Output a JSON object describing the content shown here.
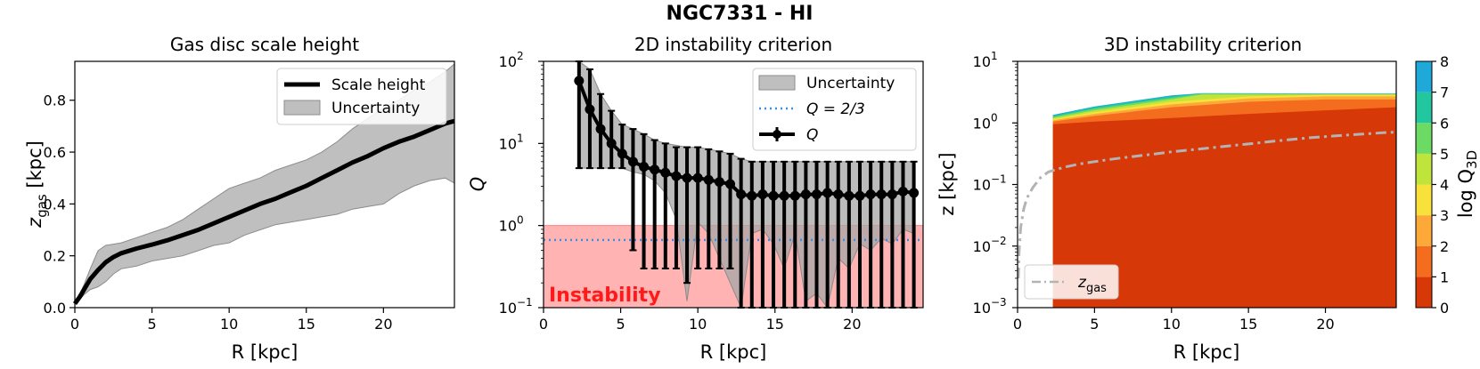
{
  "suptitle": "NGC7331 - HI",
  "chart_data": [
    {
      "type": "line",
      "title": "Gas disc scale height",
      "xlabel": "R [kpc]",
      "ylabel": "z_gas [kpc]",
      "ylabel_main": "z",
      "ylabel_sub": "gas",
      "ylabel_unit": " [kpc]",
      "xlim": [
        0,
        24.6
      ],
      "ylim": [
        0,
        0.95
      ],
      "xticks": [
        0,
        5,
        10,
        15,
        20
      ],
      "xtick_labels": [
        "0",
        "5",
        "10",
        "15",
        "20"
      ],
      "yticks": [
        0,
        0.2,
        0.4,
        0.6,
        0.8
      ],
      "ytick_labels": [
        "0.0",
        "0.2",
        "0.4",
        "0.6",
        "0.8"
      ],
      "legend": [
        "Scale height",
        "Uncertainty"
      ],
      "x": [
        0,
        0.3,
        0.6,
        1,
        1.5,
        2,
        2.5,
        3,
        4,
        5,
        6,
        7,
        8,
        9,
        10,
        11,
        12,
        13,
        14,
        15,
        16,
        17,
        18,
        19,
        20,
        21,
        22,
        23,
        24,
        24.6
      ],
      "y": [
        0.015,
        0.04,
        0.07,
        0.11,
        0.145,
        0.175,
        0.195,
        0.21,
        0.228,
        0.243,
        0.26,
        0.28,
        0.3,
        0.325,
        0.35,
        0.375,
        0.4,
        0.42,
        0.445,
        0.47,
        0.5,
        0.53,
        0.56,
        0.585,
        0.615,
        0.64,
        0.66,
        0.685,
        0.71,
        0.72
      ],
      "upper": [
        0.015,
        0.05,
        0.09,
        0.15,
        0.22,
        0.24,
        0.245,
        0.25,
        0.27,
        0.29,
        0.31,
        0.34,
        0.38,
        0.42,
        0.46,
        0.48,
        0.5,
        0.53,
        0.55,
        0.57,
        0.6,
        0.64,
        0.69,
        0.73,
        0.77,
        0.8,
        0.84,
        0.87,
        0.91,
        0.94
      ],
      "lower": [
        0.015,
        0.03,
        0.05,
        0.07,
        0.08,
        0.1,
        0.13,
        0.15,
        0.16,
        0.18,
        0.19,
        0.2,
        0.22,
        0.24,
        0.25,
        0.28,
        0.3,
        0.32,
        0.33,
        0.34,
        0.35,
        0.36,
        0.38,
        0.39,
        0.4,
        0.44,
        0.47,
        0.49,
        0.5,
        0.48
      ]
    },
    {
      "type": "line",
      "title": "2D instability criterion",
      "xlabel": "R [kpc]",
      "ylabel": "Q",
      "yscale": "log",
      "xlim": [
        0,
        24.6
      ],
      "ylim": [
        0.1,
        100
      ],
      "xticks": [
        0,
        5,
        10,
        15,
        20
      ],
      "xtick_labels": [
        "0",
        "5",
        "10",
        "15",
        "20"
      ],
      "yticks": [
        0.1,
        1,
        10,
        100
      ],
      "ytick_base": [
        "10",
        "10",
        "10",
        "10"
      ],
      "ytick_exp": [
        "−1",
        "0",
        "1",
        "2"
      ],
      "legend": [
        "Uncertainty",
        "Q = 2/3",
        "Q"
      ],
      "threshold_line": 0.6667,
      "instability_region_max": 1,
      "annotation": "Instability",
      "x": [
        2.3,
        3.0,
        3.7,
        4.4,
        5.1,
        5.8,
        6.5,
        7.2,
        7.9,
        8.6,
        9.3,
        10.0,
        10.7,
        11.4,
        12.1,
        12.8,
        13.5,
        14.2,
        14.9,
        15.6,
        16.3,
        17.0,
        17.7,
        18.4,
        19.1,
        19.8,
        20.5,
        21.2,
        21.9,
        22.6,
        23.3,
        24.0
      ],
      "Q": [
        58,
        26,
        15,
        10,
        7.5,
        6,
        5.2,
        4.8,
        4.4,
        4.0,
        3.8,
        3.8,
        3.6,
        3.4,
        3.2,
        2.4,
        2.3,
        2.4,
        2.3,
        2.3,
        2.3,
        2.4,
        2.4,
        2.5,
        2.4,
        2.3,
        2.3,
        2.4,
        2.4,
        2.4,
        2.6,
        2.5
      ],
      "Q_err_upper": [
        100,
        80,
        40,
        25,
        17,
        15,
        13,
        11,
        10,
        9,
        9,
        9,
        8.5,
        8,
        7.5,
        6.5,
        6,
        6,
        6,
        6,
        6,
        6,
        6,
        6,
        6,
        6,
        6,
        6,
        6,
        6,
        6,
        6
      ],
      "Q_err_lower": [
        5,
        5,
        5,
        5,
        5,
        0.5,
        0.3,
        0.3,
        0.3,
        0.3,
        0.2,
        0.3,
        0.3,
        0.3,
        0.3,
        0.1,
        0.1,
        0.1,
        0.1,
        0.1,
        0.1,
        0.1,
        0.1,
        0.1,
        0.1,
        0.1,
        0.1,
        0.1,
        0.1,
        0.1,
        0.1,
        0.1
      ],
      "band_upper": [
        100,
        80,
        40,
        25,
        17,
        15,
        13,
        11,
        10,
        9.5,
        9,
        9,
        8.5,
        8,
        7.5,
        6.5,
        6,
        6,
        6,
        6,
        6,
        6,
        6,
        6,
        6,
        6,
        6,
        6,
        6,
        6,
        6,
        6
      ],
      "band_lower": [
        5,
        5,
        5,
        5,
        5,
        4.5,
        4.2,
        3.5,
        2.5,
        1.2,
        0.12,
        1.1,
        0.8,
        0.4,
        0.2,
        0.1,
        0.8,
        0.9,
        0.6,
        0.3,
        0.8,
        0.12,
        0.15,
        0.1,
        0.4,
        0.3,
        0.6,
        0.5,
        0.7,
        0.6,
        0.9,
        0.8
      ]
    },
    {
      "type": "heatmap",
      "title": "3D instability criterion",
      "xlabel": "R [kpc]",
      "ylabel": "z [kpc]",
      "yscale": "log",
      "xlim": [
        0,
        24.6
      ],
      "ylim": [
        0.001,
        10
      ],
      "xticks": [
        0,
        5,
        10,
        15,
        20
      ],
      "xtick_labels": [
        "0",
        "5",
        "10",
        "15",
        "20"
      ],
      "yticks": [
        0.001,
        0.01,
        0.1,
        1,
        10
      ],
      "ytick_base": [
        "10",
        "10",
        "10",
        "10",
        "10"
      ],
      "ytick_exp": [
        "−3",
        "−2",
        "−1",
        "0",
        "1"
      ],
      "data_r_range": [
        2.3,
        24.6
      ],
      "colorbar_label": "log Q_3D",
      "colorbar_label_main": "log Q",
      "colorbar_label_sub": "3D",
      "colorbar_ticks": [
        0,
        1,
        2,
        3,
        4,
        5,
        6,
        7,
        8
      ],
      "colorbar_tick_labels": [
        "0",
        "1",
        "2",
        "3",
        "4",
        "5",
        "6",
        "7",
        "8"
      ],
      "colorbar_colors": [
        "#d63808",
        "#f46c1e",
        "#fca93a",
        "#f7e13a",
        "#bfe53c",
        "#6bdb63",
        "#22c7a0",
        "#1ea9d8",
        "#2d7fee"
      ],
      "legend": [
        "z_gas"
      ],
      "legend_main": "z",
      "legend_sub": "gas",
      "contours": [
        {
          "level": 0,
          "r": [
            2.3,
            5,
            10,
            15,
            20,
            24.6
          ],
          "z_top": [
            0.95,
            1.05,
            1.2,
            1.4,
            1.6,
            1.8
          ]
        },
        {
          "level": 1,
          "r": [
            2.3,
            5,
            10,
            15,
            20,
            24.6
          ],
          "z_top": [
            1.05,
            1.3,
            1.8,
            2.2,
            2.4,
            2.4
          ]
        },
        {
          "level": 2,
          "r": [
            2.3,
            5,
            10,
            15,
            20,
            24.6
          ],
          "z_top": [
            1.1,
            1.4,
            2.0,
            2.5,
            2.7,
            2.7
          ]
        },
        {
          "level": 3,
          "r": [
            2.3,
            5,
            10,
            15,
            20,
            24.6
          ],
          "z_top": [
            1.15,
            1.5,
            2.2,
            2.7,
            2.85,
            2.85
          ]
        },
        {
          "level": 4,
          "r": [
            2.3,
            5,
            10,
            12,
            20,
            24.6
          ],
          "z_top": [
            1.2,
            1.6,
            2.4,
            2.9,
            2.9,
            2.9
          ]
        },
        {
          "level": 5,
          "r": [
            2.3,
            5,
            10,
            12,
            20,
            24.6
          ],
          "z_top": [
            1.25,
            1.7,
            2.55,
            3.0,
            2.95,
            2.95
          ]
        },
        {
          "level": 6,
          "r": [
            2.3,
            5,
            10,
            12,
            20,
            24.6
          ],
          "z_top": [
            1.3,
            1.8,
            2.7,
            3.0,
            3.0,
            3.0
          ]
        },
        {
          "level": 7,
          "r": [
            2.3,
            5,
            10,
            12,
            20,
            24.6
          ],
          "z_top": [
            1.35,
            1.85,
            2.8,
            3.05,
            3.0,
            3.0
          ]
        }
      ],
      "zgas_line": {
        "r": [
          0.05,
          0.1,
          0.2,
          0.4,
          0.6,
          1,
          1.5,
          2,
          2.5,
          3,
          4,
          5,
          6,
          7,
          8,
          9,
          10,
          11,
          12,
          13,
          14,
          15,
          16,
          17,
          18,
          19,
          20,
          21,
          22,
          23,
          24,
          24.6
        ],
        "z": [
          0.003,
          0.008,
          0.02,
          0.04,
          0.06,
          0.09,
          0.13,
          0.16,
          0.175,
          0.19,
          0.215,
          0.235,
          0.255,
          0.275,
          0.295,
          0.315,
          0.34,
          0.36,
          0.38,
          0.405,
          0.43,
          0.455,
          0.485,
          0.515,
          0.545,
          0.575,
          0.6,
          0.625,
          0.65,
          0.675,
          0.7,
          0.71
        ]
      }
    }
  ]
}
